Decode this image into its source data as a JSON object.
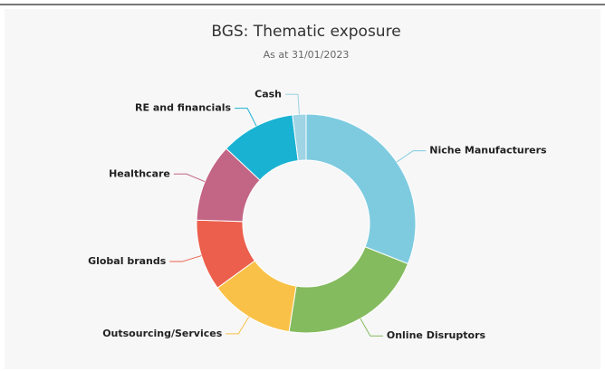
{
  "chart_data": {
    "type": "donut",
    "title": "BGS: Thematic exposure",
    "subtitle": "As at 31/01/2023",
    "categories": [
      "Niche Manufacturers",
      "Online Disruptors",
      "Outsourcing/Services",
      "Global brands",
      "Healthcare",
      "RE and financials",
      "Cash"
    ],
    "values": [
      31,
      21.5,
      12.5,
      10.5,
      11.5,
      11,
      2
    ],
    "colors": [
      "#7ecbe0",
      "#85bb5f",
      "#f9c147",
      "#ec5f4c",
      "#c36584",
      "#1ab2d2",
      "#9fd4e4"
    ]
  }
}
